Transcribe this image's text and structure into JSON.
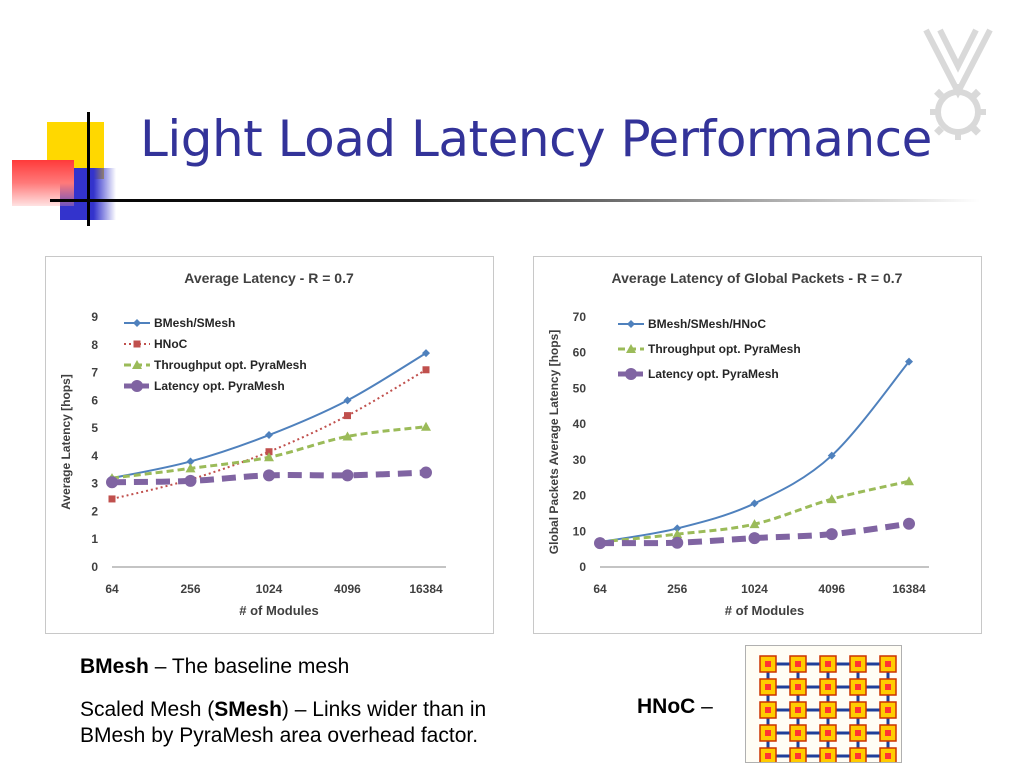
{
  "slide": {
    "title": "Light Load Latency Performance"
  },
  "notes": {
    "bmesh_bold": "BMesh",
    "bmesh_rest": " – The baseline mesh",
    "smesh_pre": "Scaled Mesh (",
    "smesh_bold": "SMesh",
    "smesh_rest": ") – Links wider than in",
    "smesh_line2": "BMesh by PyraMesh area overhead factor.",
    "hnoc_bold": "HNoC",
    "hnoc_rest": " –"
  },
  "colors": {
    "title": "#333399",
    "bmesh": "#4f81bd",
    "hnoc": "#c0504d",
    "throughput": "#9bbb59",
    "latency": "#8064a2"
  },
  "chart_data": [
    {
      "type": "line",
      "title": "Average Latency - R = 0.7",
      "xlabel": "# of Modules",
      "ylabel": "Average Latency [hops]",
      "categories": [
        "64",
        "256",
        "1024",
        "4096",
        "16384"
      ],
      "ylim": [
        0,
        9
      ],
      "yticks": [
        0,
        1,
        2,
        3,
        4,
        5,
        6,
        7,
        8,
        9
      ],
      "grid": false,
      "legend_position": "top-left",
      "series": [
        {
          "name": "BMesh/SMesh",
          "values": [
            3.2,
            3.8,
            4.75,
            6.0,
            7.7
          ],
          "color": "#4f81bd",
          "style": "solid",
          "marker": "diamond"
        },
        {
          "name": "HNoC",
          "values": [
            2.45,
            3.15,
            4.15,
            5.45,
            7.1
          ],
          "color": "#c0504d",
          "style": "dotted",
          "marker": "square"
        },
        {
          "name": "Throughput opt. PyraMesh",
          "values": [
            3.2,
            3.55,
            3.95,
            4.7,
            5.05
          ],
          "color": "#9bbb59",
          "style": "dashed",
          "marker": "triangle"
        },
        {
          "name": "Latency opt. PyraMesh",
          "values": [
            3.05,
            3.1,
            3.3,
            3.3,
            3.4
          ],
          "color": "#8064a2",
          "style": "heavy-dashed",
          "marker": "circle"
        }
      ]
    },
    {
      "type": "line",
      "title": "Average Latency of Global Packets - R = 0.7",
      "xlabel": "# of Modules",
      "ylabel": "Global Packets Average Latency [hops]",
      "categories": [
        "64",
        "256",
        "1024",
        "4096",
        "16384"
      ],
      "ylim": [
        0,
        70
      ],
      "yticks": [
        0,
        10,
        20,
        30,
        40,
        50,
        60,
        70
      ],
      "grid": false,
      "legend_position": "top-left",
      "series": [
        {
          "name": "BMesh/SMesh/HNoC",
          "values": [
            7,
            10.8,
            17.8,
            31.2,
            57.5
          ],
          "color": "#4f81bd",
          "style": "solid",
          "marker": "diamond"
        },
        {
          "name": "Throughput opt. PyraMesh",
          "values": [
            7,
            9.2,
            12,
            19,
            24
          ],
          "color": "#9bbb59",
          "style": "dashed",
          "marker": "triangle"
        },
        {
          "name": "Latency opt. PyraMesh",
          "values": [
            6.7,
            6.8,
            8.1,
            9.2,
            12.1
          ],
          "color": "#8064a2",
          "style": "heavy-dashed",
          "marker": "circle"
        }
      ]
    }
  ]
}
